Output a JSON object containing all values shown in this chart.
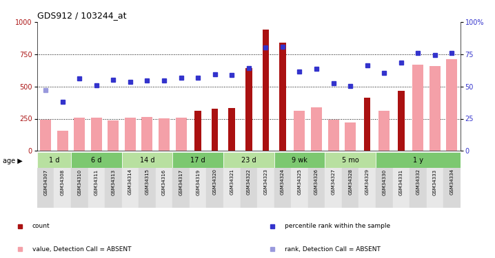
{
  "title": "GDS912 / 103244_at",
  "samples": [
    "GSM34307",
    "GSM34308",
    "GSM34310",
    "GSM34311",
    "GSM34313",
    "GSM34314",
    "GSM34315",
    "GSM34316",
    "GSM34317",
    "GSM34319",
    "GSM34320",
    "GSM34321",
    "GSM34322",
    "GSM34323",
    "GSM34324",
    "GSM34325",
    "GSM34326",
    "GSM34327",
    "GSM34328",
    "GSM34329",
    "GSM34330",
    "GSM34331",
    "GSM34332",
    "GSM34333",
    "GSM34334"
  ],
  "count_red": [
    null,
    null,
    null,
    null,
    null,
    null,
    null,
    null,
    null,
    310,
    325,
    335,
    640,
    940,
    840,
    null,
    null,
    null,
    null,
    415,
    null,
    465,
    null,
    null,
    null
  ],
  "absent_value_pink": [
    240,
    155,
    260,
    260,
    235,
    260,
    265,
    255,
    260,
    null,
    null,
    null,
    null,
    null,
    null,
    310,
    340,
    240,
    220,
    null,
    310,
    null,
    670,
    660,
    710
  ],
  "rank_blue_pct": [
    null,
    38,
    56,
    51,
    55,
    53.5,
    54.5,
    54.5,
    56.5,
    57,
    59.5,
    59,
    64,
    80,
    80.5,
    61.5,
    63.5,
    52.5,
    50.5,
    66.5,
    60.5,
    68.5,
    76,
    74.5,
    76
  ],
  "rank_absent_pct": [
    47,
    null,
    null,
    null,
    null,
    null,
    null,
    null,
    null,
    null,
    null,
    null,
    null,
    null,
    null,
    null,
    null,
    null,
    null,
    null,
    null,
    null,
    null,
    null,
    null
  ],
  "age_groups": [
    {
      "label": "1 d",
      "start": 0,
      "end": 2
    },
    {
      "label": "6 d",
      "start": 2,
      "end": 5
    },
    {
      "label": "14 d",
      "start": 5,
      "end": 8
    },
    {
      "label": "17 d",
      "start": 8,
      "end": 11
    },
    {
      "label": "23 d",
      "start": 11,
      "end": 14
    },
    {
      "label": "9 wk",
      "start": 14,
      "end": 17
    },
    {
      "label": "5 mo",
      "start": 17,
      "end": 20
    },
    {
      "label": "1 y",
      "start": 20,
      "end": 25
    }
  ],
  "bar_color_red": "#aa1111",
  "bar_color_pink": "#f4a0a8",
  "dot_color_blue": "#3333cc",
  "dot_color_lightblue": "#9999dd",
  "age_colors": [
    "#b8e0a0",
    "#7cc870"
  ],
  "legend_items": [
    {
      "label": "count",
      "color": "#aa1111"
    },
    {
      "label": "percentile rank within the sample",
      "color": "#3333cc"
    },
    {
      "label": "value, Detection Call = ABSENT",
      "color": "#f4a0a8"
    },
    {
      "label": "rank, Detection Call = ABSENT",
      "color": "#9999dd"
    }
  ]
}
